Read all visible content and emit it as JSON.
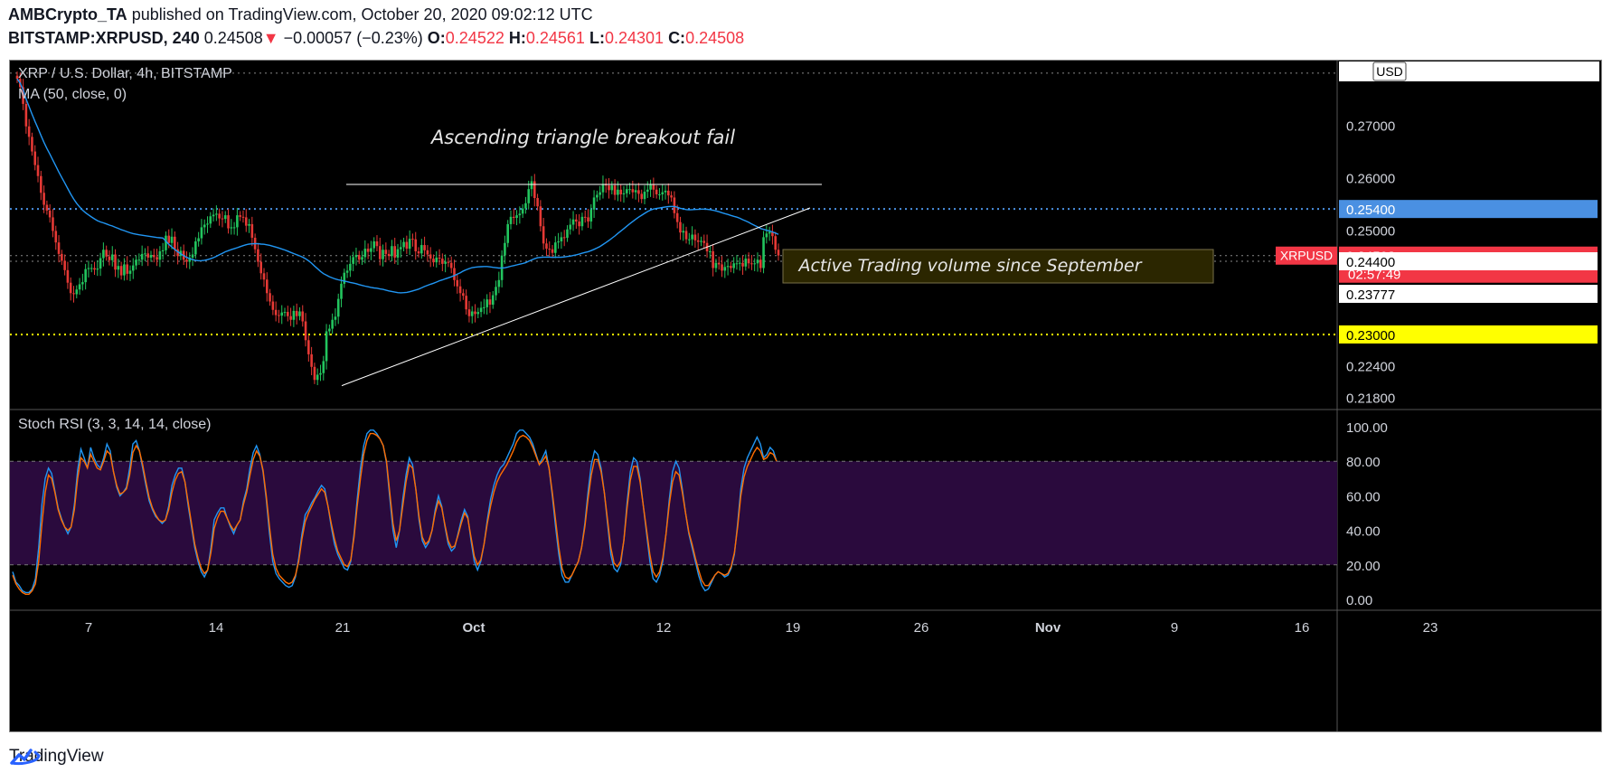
{
  "header": {
    "publisher": "AMBCrypto_TA",
    "published_text": "published on TradingView.com, October 20, 2020 09:02:12 UTC",
    "symbol": "BITSTAMP:XRPUSD, 240",
    "last": "0.24508",
    "change_arrow": "▼",
    "change": "−0.00057 (−0.23%)",
    "o_label": "O:",
    "o_value": "0.24522",
    "h_label": "H:",
    "h_value": "0.24561",
    "l_label": "L:",
    "l_value": "0.24301",
    "c_label": "C:",
    "c_value": "0.24508"
  },
  "footer": {
    "brand": "TradingView",
    "icon": "tradingview-logo-icon"
  },
  "colors": {
    "up": "#26a69a",
    "down": "#ef5350",
    "candle_up": "#22c55e",
    "candle_down": "#e53935",
    "ma": "#2196f3",
    "stoch_k": "#2196f3",
    "stoch_d": "#ff6d00",
    "band": "#2a0a3d",
    "price_label": "#f23645",
    "level_blue": "#4a90e2",
    "level_yellow": "#ffff00"
  },
  "chart_data": [
    {
      "type": "candlestick",
      "title": "XRP / U.S. Dollar, 4h, BITSTAMP",
      "indicator": "MA (50, close, 0)",
      "currency_badge": "USD",
      "x_ticks": [
        "7",
        "14",
        "21",
        "Oct",
        "12",
        "19",
        "26",
        "Nov",
        "9",
        "16",
        "23"
      ],
      "y_ticks": [
        "0.27000",
        "0.26000",
        "0.25000",
        "0.22400",
        "0.21800"
      ],
      "ylim": [
        0.2165,
        0.2817
      ],
      "close": [
        0.2789,
        0.2773,
        0.2741,
        0.2698,
        0.2678,
        0.265,
        0.2624,
        0.2603,
        0.2571,
        0.2548,
        0.2537,
        0.2524,
        0.2498,
        0.2476,
        0.2454,
        0.2441,
        0.2423,
        0.2399,
        0.2379,
        0.2377,
        0.2386,
        0.2396,
        0.24,
        0.2425,
        0.2427,
        0.2427,
        0.2424,
        0.2426,
        0.2446,
        0.2462,
        0.2449,
        0.2442,
        0.2453,
        0.2424,
        0.2431,
        0.2413,
        0.2434,
        0.2416,
        0.2422,
        0.2432,
        0.2443,
        0.2443,
        0.2454,
        0.2455,
        0.2447,
        0.2452,
        0.2448,
        0.2443,
        0.2459,
        0.2461,
        0.2489,
        0.2475,
        0.2487,
        0.2463,
        0.245,
        0.246,
        0.2443,
        0.2439,
        0.2447,
        0.2453,
        0.2478,
        0.2484,
        0.2505,
        0.251,
        0.2512,
        0.2526,
        0.2529,
        0.2531,
        0.2522,
        0.2521,
        0.2528,
        0.2503,
        0.2505,
        0.2505,
        0.2528,
        0.2525,
        0.2524,
        0.2508,
        0.2511,
        0.2485,
        0.2463,
        0.2439,
        0.2417,
        0.2405,
        0.2379,
        0.2363,
        0.2347,
        0.2337,
        0.2336,
        0.2342,
        0.2343,
        0.2335,
        0.2328,
        0.2345,
        0.2335,
        0.2344,
        0.2325,
        0.2289,
        0.2262,
        0.2238,
        0.2213,
        0.2223,
        0.2226,
        0.2249,
        0.2306,
        0.2311,
        0.2328,
        0.2334,
        0.2368,
        0.2397,
        0.2418,
        0.2422,
        0.2435,
        0.2448,
        0.2452,
        0.2443,
        0.2448,
        0.2464,
        0.2458,
        0.2465,
        0.2478,
        0.2469,
        0.2444,
        0.2462,
        0.2454,
        0.245,
        0.2469,
        0.2447,
        0.2463,
        0.2467,
        0.2477,
        0.2464,
        0.2483,
        0.2482,
        0.2459,
        0.2455,
        0.2471,
        0.2461,
        0.2453,
        0.2445,
        0.2438,
        0.2447,
        0.2445,
        0.2435,
        0.2439,
        0.2437,
        0.2427,
        0.2404,
        0.2392,
        0.2379,
        0.2374,
        0.2348,
        0.2335,
        0.2344,
        0.2339,
        0.2343,
        0.2351,
        0.2352,
        0.2367,
        0.2357,
        0.2375,
        0.2391,
        0.2404,
        0.2451,
        0.2475,
        0.2511,
        0.2525,
        0.2523,
        0.2528,
        0.2531,
        0.2541,
        0.2551,
        0.2578,
        0.2593,
        0.2561,
        0.2545,
        0.2507,
        0.2474,
        0.2464,
        0.2463,
        0.2456,
        0.2476,
        0.2478,
        0.2486,
        0.2485,
        0.2501,
        0.251,
        0.252,
        0.2516,
        0.2507,
        0.2525,
        0.2524,
        0.2516,
        0.2539,
        0.2562,
        0.2567,
        0.2572,
        0.2588,
        0.2585,
        0.2576,
        0.2585,
        0.2567,
        0.2577,
        0.2568,
        0.257,
        0.2578,
        0.2578,
        0.2572,
        0.2576,
        0.2569,
        0.2559,
        0.2573,
        0.2577,
        0.2586,
        0.2577,
        0.2568,
        0.2568,
        0.2572,
        0.2575,
        0.2566,
        0.2562,
        0.2532,
        0.2515,
        0.2495,
        0.2498,
        0.2482,
        0.2482,
        0.2491,
        0.248,
        0.2477,
        0.2479,
        0.2475,
        0.2459,
        0.2459,
        0.2427,
        0.2437,
        0.2434,
        0.2422,
        0.2429,
        0.2431,
        0.2427,
        0.2436,
        0.2436,
        0.2437,
        0.243,
        0.2445,
        0.2436,
        0.2435,
        0.2436,
        0.2443,
        0.2427,
        0.2486,
        0.2493,
        0.2496,
        0.2488,
        0.2462,
        0.2451
      ],
      "ma50_endpoints": {
        "start": 0.2789,
        "end": 0.2486
      },
      "price_axis_labels": [
        {
          "text": "0.25400",
          "value": 0.254,
          "bg": "#4a90e2",
          "fg": "#ffffff"
        },
        {
          "text": "0.24508",
          "value": 0.24508,
          "bg": "#f23645",
          "fg": "#ffffff",
          "symbol": "XRPUSD",
          "timer": "02:57:49"
        },
        {
          "text": "0.24400",
          "value": 0.244,
          "bg": "#ffffff",
          "fg": "#000000"
        },
        {
          "text": "0.23777",
          "value": 0.23777,
          "bg": "#ffffff",
          "fg": "#000000"
        },
        {
          "text": "0.23000",
          "value": 0.23,
          "bg": "#ffff00",
          "fg": "#000000"
        }
      ],
      "level_lines": [
        {
          "value": 0.254,
          "style": "dotted",
          "color": "#4a90e2"
        },
        {
          "value": 0.23,
          "style": "dotted",
          "color": "#ffff00"
        },
        {
          "value": 0.24508,
          "style": "dotted",
          "color": "#888888"
        },
        {
          "value": 0.244,
          "style": "dotted",
          "color": "#888888"
        },
        {
          "value": 0.28,
          "style": "dotted",
          "color": "#888888"
        }
      ],
      "annotations": {
        "triangle_label": "Ascending triangle breakout fail",
        "volume_label": "Active Trading volume since September",
        "resistance_value": 0.2587,
        "trendline_from": 0.2202,
        "trendline_to": 0.2542
      }
    },
    {
      "type": "line",
      "title": "Stoch RSI (3, 3, 14, 14, close)",
      "y_ticks": [
        "100.00",
        "80.00",
        "60.00",
        "40.00",
        "20.00",
        "0.00"
      ],
      "ylim": [
        0,
        100
      ],
      "band": [
        20,
        80
      ],
      "k": [
        16,
        10,
        8,
        5,
        4,
        4,
        6,
        12,
        30,
        55,
        70,
        76,
        73,
        63,
        53,
        47,
        42,
        38,
        42,
        55,
        75,
        87,
        82,
        76,
        88,
        82,
        78,
        76,
        82,
        90,
        86,
        74,
        65,
        60,
        62,
        65,
        76,
        90,
        92,
        86,
        76,
        66,
        57,
        52,
        48,
        46,
        44,
        46,
        54,
        66,
        72,
        76,
        76,
        68,
        54,
        42,
        30,
        22,
        16,
        13,
        17,
        30,
        46,
        50,
        53,
        53,
        47,
        42,
        38,
        43,
        46,
        57,
        64,
        76,
        85,
        89,
        84,
        74,
        58,
        38,
        22,
        15,
        12,
        10,
        8,
        7,
        8,
        13,
        24,
        38,
        49,
        52,
        56,
        59,
        63,
        66,
        64,
        54,
        42,
        32,
        26,
        22,
        18,
        17,
        22,
        38,
        58,
        76,
        89,
        96,
        98,
        98,
        96,
        93,
        89,
        79,
        59,
        40,
        30,
        40,
        58,
        72,
        82,
        78,
        64,
        46,
        34,
        30,
        33,
        40,
        52,
        60,
        54,
        42,
        32,
        28,
        30,
        38,
        46,
        52,
        48,
        34,
        22,
        17,
        22,
        32,
        46,
        58,
        66,
        72,
        76,
        78,
        82,
        86,
        90,
        96,
        98,
        98,
        96,
        94,
        90,
        84,
        78,
        82,
        86,
        76,
        60,
        42,
        26,
        14,
        10,
        10,
        14,
        18,
        22,
        30,
        44,
        62,
        78,
        86,
        84,
        76,
        62,
        44,
        26,
        18,
        16,
        20,
        34,
        56,
        74,
        82,
        80,
        70,
        54,
        38,
        22,
        12,
        10,
        14,
        22,
        38,
        58,
        74,
        80,
        76,
        64,
        50,
        38,
        30,
        22,
        14,
        8,
        5,
        6,
        10,
        14,
        16,
        15,
        13,
        14,
        18,
        26,
        44,
        64,
        76,
        82,
        86,
        90,
        94,
        90,
        82,
        84,
        88,
        86,
        80
      ],
      "d": [
        14,
        9,
        6,
        4,
        3,
        3,
        5,
        9,
        22,
        44,
        62,
        72,
        70,
        62,
        52,
        46,
        42,
        40,
        42,
        52,
        70,
        82,
        80,
        76,
        84,
        80,
        76,
        75,
        80,
        86,
        84,
        74,
        66,
        61,
        62,
        64,
        72,
        85,
        89,
        86,
        78,
        68,
        59,
        53,
        49,
        46,
        45,
        46,
        52,
        62,
        69,
        73,
        74,
        68,
        56,
        44,
        32,
        24,
        18,
        15,
        17,
        27,
        41,
        47,
        51,
        51,
        47,
        43,
        40,
        43,
        46,
        55,
        62,
        72,
        81,
        86,
        83,
        75,
        60,
        42,
        26,
        18,
        14,
        12,
        10,
        9,
        10,
        14,
        22,
        35,
        45,
        50,
        54,
        58,
        61,
        64,
        62,
        54,
        44,
        35,
        28,
        24,
        20,
        19,
        23,
        36,
        54,
        70,
        84,
        92,
        96,
        96,
        95,
        93,
        89,
        80,
        62,
        44,
        34,
        40,
        54,
        68,
        78,
        76,
        64,
        48,
        36,
        32,
        34,
        40,
        50,
        57,
        53,
        43,
        34,
        30,
        31,
        37,
        44,
        50,
        47,
        36,
        25,
        20,
        23,
        32,
        44,
        54,
        62,
        68,
        72,
        75,
        78,
        82,
        86,
        91,
        94,
        95,
        94,
        92,
        88,
        83,
        78,
        80,
        83,
        76,
        62,
        46,
        30,
        18,
        13,
        12,
        14,
        18,
        22,
        30,
        42,
        58,
        72,
        81,
        81,
        74,
        62,
        46,
        30,
        21,
        19,
        22,
        34,
        53,
        69,
        77,
        77,
        68,
        54,
        40,
        26,
        16,
        13,
        16,
        24,
        38,
        55,
        68,
        74,
        72,
        62,
        50,
        39,
        32,
        24,
        17,
        11,
        8,
        8,
        11,
        14,
        16,
        15,
        14,
        15,
        19,
        27,
        42,
        60,
        71,
        77,
        81,
        85,
        88,
        86,
        81,
        82,
        85,
        84,
        80
      ]
    }
  ]
}
